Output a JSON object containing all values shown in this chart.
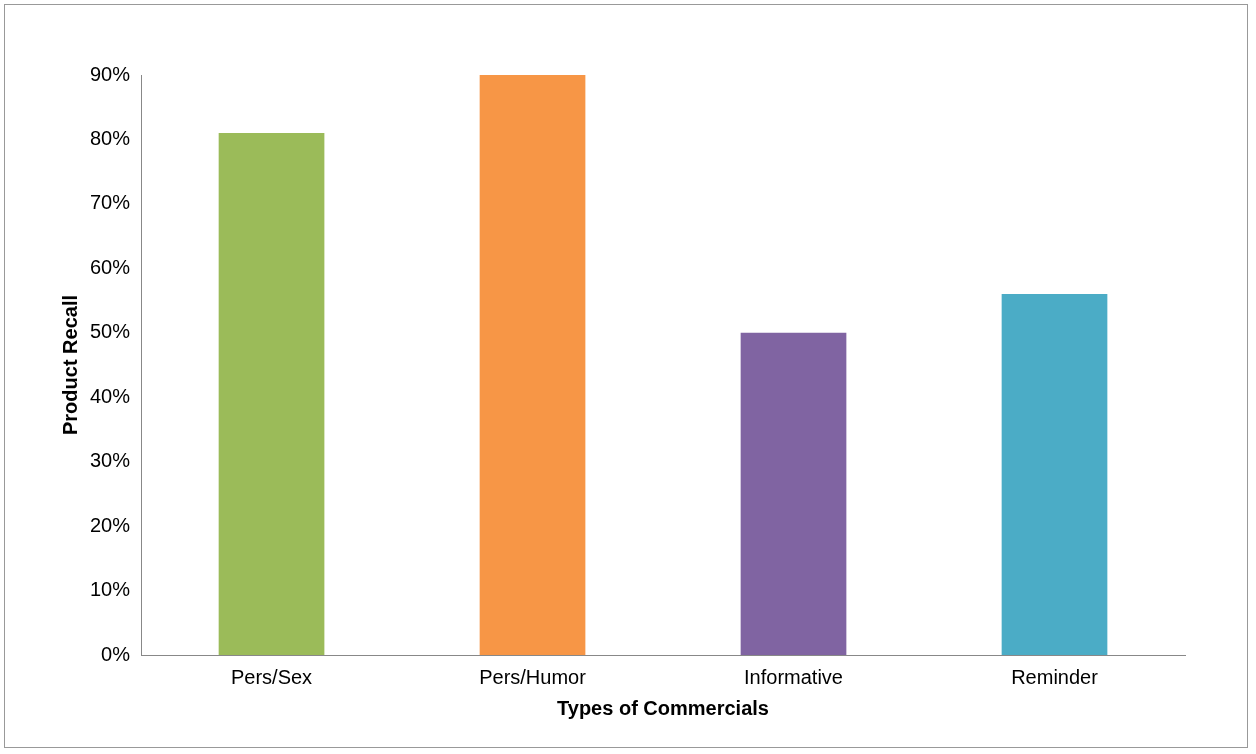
{
  "chart_data": {
    "type": "bar",
    "xlabel": "Types of Commercials",
    "ylabel": "Product Recall",
    "categories": [
      "Pers/Sex",
      "Pers/Humor",
      "Informative",
      "Reminder"
    ],
    "values": [
      81,
      90,
      50,
      56
    ],
    "colors": [
      "#9bbb59",
      "#f79646",
      "#8064a2",
      "#4bacc6"
    ],
    "ylim": [
      0,
      90
    ],
    "yticks": [
      {
        "value": 0,
        "label": "0%"
      },
      {
        "value": 10,
        "label": "10%"
      },
      {
        "value": 20,
        "label": "20%"
      },
      {
        "value": 30,
        "label": "30%"
      },
      {
        "value": 40,
        "label": "40%"
      },
      {
        "value": 50,
        "label": "50%"
      },
      {
        "value": 60,
        "label": "60%"
      },
      {
        "value": 70,
        "label": "70%"
      },
      {
        "value": 80,
        "label": "80%"
      },
      {
        "value": 90,
        "label": "90%"
      }
    ],
    "grid": false,
    "legend": false
  }
}
